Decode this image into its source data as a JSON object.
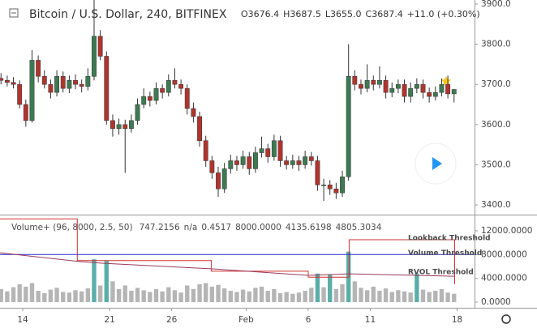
{
  "chart_data": {
    "type": "candlestick",
    "title": "Bitcoin / U.S. Dollar, 240, BITFINEX",
    "ohlc_legend": [
      "O3676.4",
      "H3687.5",
      "L3655.0",
      "C3687.4",
      "+11.0 (+0.30%)"
    ],
    "colors": {
      "up": "#3d7a52",
      "down": "#b0342e",
      "wick": "#333333"
    },
    "x": [
      -1.75,
      -1.25,
      -0.75,
      -0.25,
      0.25,
      0.75,
      1.25,
      1.75,
      2.25,
      2.75,
      3.25,
      3.75,
      4.25,
      4.75,
      5.25,
      5.75,
      6.25,
      6.75,
      7.25,
      7.75,
      8.25,
      8.75,
      9.25,
      9.75,
      10.25,
      10.75,
      11.25,
      11.75,
      12.25,
      12.75,
      13.25,
      13.75,
      14.25,
      14.75,
      15.25,
      15.75,
      16.25,
      16.75,
      17.25,
      17.75,
      18.25,
      18.75,
      19.25,
      19.75,
      20.25,
      20.75,
      21.25,
      21.75,
      22.25,
      22.75,
      23.25,
      23.75,
      24.25,
      24.75,
      25.25,
      25.75,
      26.25,
      26.75,
      27.25,
      27.75,
      28.25,
      28.75,
      29.25,
      29.75,
      30.25,
      30.75,
      31.25,
      31.75,
      32.25,
      32.75,
      33.25,
      33.75,
      34.25,
      34.75
    ],
    "candles": [
      [
        3715,
        3728,
        3700,
        3710
      ],
      [
        3710,
        3722,
        3695,
        3705
      ],
      [
        3705,
        3718,
        3690,
        3700
      ],
      [
        3700,
        3710,
        3640,
        3650
      ],
      [
        3650,
        3662,
        3595,
        3610
      ],
      [
        3610,
        3785,
        3605,
        3760
      ],
      [
        3760,
        3772,
        3705,
        3720
      ],
      [
        3720,
        3735,
        3690,
        3700
      ],
      [
        3700,
        3712,
        3665,
        3680
      ],
      [
        3680,
        3735,
        3670,
        3720
      ],
      [
        3720,
        3732,
        3680,
        3690
      ],
      [
        3690,
        3722,
        3678,
        3710
      ],
      [
        3710,
        3725,
        3688,
        3700
      ],
      [
        3700,
        3712,
        3680,
        3695
      ],
      [
        3695,
        3740,
        3685,
        3720
      ],
      [
        3720,
        3910,
        3710,
        3820
      ],
      [
        3820,
        3835,
        3760,
        3770
      ],
      [
        3770,
        3782,
        3600,
        3610
      ],
      [
        3610,
        3625,
        3570,
        3590
      ],
      [
        3590,
        3615,
        3575,
        3600
      ],
      [
        3600,
        3612,
        3480,
        3590
      ],
      [
        3590,
        3625,
        3580,
        3610
      ],
      [
        3610,
        3665,
        3600,
        3650
      ],
      [
        3650,
        3690,
        3640,
        3670
      ],
      [
        3670,
        3682,
        3645,
        3660
      ],
      [
        3660,
        3705,
        3650,
        3690
      ],
      [
        3690,
        3700,
        3665,
        3680
      ],
      [
        3680,
        3725,
        3670,
        3710
      ],
      [
        3710,
        3740,
        3690,
        3700
      ],
      [
        3700,
        3712,
        3675,
        3690
      ],
      [
        3690,
        3700,
        3625,
        3640
      ],
      [
        3640,
        3655,
        3605,
        3620
      ],
      [
        3620,
        3632,
        3545,
        3560
      ],
      [
        3560,
        3572,
        3495,
        3510
      ],
      [
        3510,
        3522,
        3465,
        3480
      ],
      [
        3480,
        3495,
        3420,
        3440
      ],
      [
        3440,
        3505,
        3430,
        3490
      ],
      [
        3490,
        3525,
        3478,
        3510
      ],
      [
        3510,
        3522,
        3485,
        3500
      ],
      [
        3500,
        3535,
        3490,
        3520
      ],
      [
        3520,
        3532,
        3475,
        3490
      ],
      [
        3490,
        3545,
        3480,
        3530
      ],
      [
        3530,
        3570,
        3518,
        3540
      ],
      [
        3540,
        3552,
        3505,
        3520
      ],
      [
        3520,
        3575,
        3510,
        3560
      ],
      [
        3560,
        3572,
        3495,
        3510
      ],
      [
        3510,
        3522,
        3488,
        3500
      ],
      [
        3500,
        3525,
        3490,
        3510
      ],
      [
        3510,
        3522,
        3485,
        3500
      ],
      [
        3500,
        3535,
        3490,
        3520
      ],
      [
        3520,
        3532,
        3498,
        3510
      ],
      [
        3510,
        3522,
        3435,
        3450
      ],
      [
        3450,
        3465,
        3410,
        3450
      ],
      [
        3450,
        3462,
        3425,
        3440
      ],
      [
        3440,
        3455,
        3415,
        3430
      ],
      [
        3430,
        3485,
        3420,
        3470
      ],
      [
        3470,
        3800,
        3460,
        3720
      ],
      [
        3720,
        3735,
        3685,
        3700
      ],
      [
        3700,
        3712,
        3675,
        3690
      ],
      [
        3690,
        3750,
        3680,
        3710
      ],
      [
        3710,
        3722,
        3685,
        3700
      ],
      [
        3700,
        3745,
        3690,
        3710
      ],
      [
        3710,
        3722,
        3665,
        3680
      ],
      [
        3680,
        3705,
        3668,
        3690
      ],
      [
        3690,
        3712,
        3678,
        3700
      ],
      [
        3700,
        3712,
        3655,
        3670
      ],
      [
        3670,
        3705,
        3655,
        3690
      ],
      [
        3690,
        3715,
        3678,
        3700
      ],
      [
        3700,
        3712,
        3665,
        3680
      ],
      [
        3680,
        3692,
        3655,
        3670
      ],
      [
        3670,
        3695,
        3660,
        3680
      ],
      [
        3680,
        3715,
        3670,
        3700
      ],
      [
        3700,
        3722,
        3665,
        3676.4
      ],
      [
        3676.4,
        3687.5,
        3655.0,
        3687.4
      ]
    ],
    "xlim": [
      -1.83,
      36.4
    ],
    "xticks": [
      {
        "value": 0,
        "label": "14"
      },
      {
        "value": 7,
        "label": "21"
      },
      {
        "value": 12,
        "label": "26"
      },
      {
        "value": 18,
        "label": "Feb"
      },
      {
        "value": 23,
        "label": "6"
      },
      {
        "value": 28,
        "label": "11"
      },
      {
        "value": 35,
        "label": "18"
      }
    ],
    "ylim": [
      3382,
      3910
    ],
    "yticks": [
      {
        "value": 3400,
        "label": "3400.0"
      },
      {
        "value": 3500,
        "label": "3500.0"
      },
      {
        "value": 3600,
        "label": "3600.0"
      },
      {
        "value": 3700,
        "label": "3700.0"
      },
      {
        "value": 3800,
        "label": "3800.0"
      },
      {
        "value": 3900,
        "label": "3900.0"
      }
    ],
    "indicator": {
      "title": "Volume+ (96, 8000, 2.5, 50)",
      "legend_values": [
        {
          "text": "747.2156",
          "color": "#555555"
        },
        {
          "text": "n/a",
          "color": "#555555"
        },
        {
          "text": "0.4517",
          "color": "#8e2a8e"
        },
        {
          "text": "8000.0000",
          "color": "#2a2ad0"
        },
        {
          "text": "4135.6198",
          "color": "#8a2a4a"
        },
        {
          "text": "4805.3034",
          "color": "#d02020"
        }
      ],
      "ylim": [
        -955,
        14318
      ],
      "yticks": [
        {
          "value": 0,
          "label": "0.0000"
        },
        {
          "value": 4000,
          "label": "4000.0000"
        },
        {
          "value": 8000,
          "label": "8000.0000"
        },
        {
          "value": 12000,
          "label": "12000.0000"
        }
      ],
      "volume": [
        2200,
        1800,
        2500,
        3000,
        2600,
        3200,
        1900,
        1500,
        2100,
        2400,
        1700,
        1600,
        2000,
        1800,
        2300,
        7200,
        2800,
        7000,
        3500,
        2200,
        2800,
        1900,
        2400,
        2000,
        1700,
        2200,
        1800,
        2500,
        2000,
        1600,
        2800,
        2200,
        3000,
        3200,
        2600,
        2900,
        2300,
        1900,
        1700,
        2100,
        1800,
        2400,
        2600,
        1900,
        2200,
        1500,
        1700,
        1400,
        1600,
        1900,
        2400,
        4800,
        2500,
        4700,
        2200,
        3000,
        8500,
        3500,
        2400,
        2000,
        2600,
        1900,
        2300,
        1700,
        2000,
        1800,
        1600,
        4800,
        2100,
        1700,
        1900,
        2200,
        1600,
        1400
      ],
      "volume_color": "#b5b5b5",
      "volume_high_color": "#5aaea8",
      "lines": [
        {
          "name": "Lookback Threshold",
          "color": "#d03030",
          "x": [
            -1.83,
            4.4,
            4.4,
            15.2,
            15.2,
            23.0,
            23.0,
            26.3,
            26.3,
            34.8,
            34.8
          ],
          "values": [
            14000,
            14000,
            7000,
            7000,
            5200,
            5200,
            4200,
            4200,
            10500,
            10500,
            3000
          ]
        },
        {
          "name": "Volume Threshold",
          "color": "#2a2ad0",
          "x": [
            -1.83,
            36.4
          ],
          "values": [
            8000,
            8000
          ]
        },
        {
          "name": "RVOL Threshold",
          "color": "#9a3a5a",
          "x": [
            -1.83,
            4.7,
            6.7,
            15.2,
            23.0,
            26.3,
            34.8
          ],
          "values": [
            8300,
            6800,
            6500,
            5600,
            4500,
            4760,
            4350
          ]
        }
      ]
    }
  }
}
